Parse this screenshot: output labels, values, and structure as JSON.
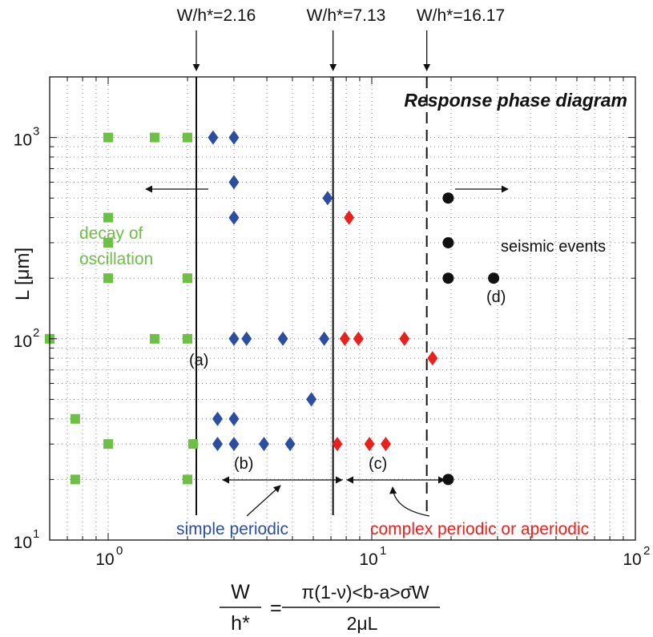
{
  "chart_data": {
    "type": "scatter",
    "title": "Response phase diagram",
    "xscale": "log",
    "yscale": "log",
    "xlim": [
      0.6,
      100
    ],
    "ylim": [
      10,
      2000
    ],
    "grid": true,
    "ylabel": "L [μm]",
    "xlabel": {
      "lhs_num": "W",
      "lhs_den": "h*",
      "equals": "=",
      "rhs_num": "π(1-ν)<b-a>σ̄W",
      "rhs_den": "2μL"
    },
    "x_ticks": [
      {
        "value": 1,
        "base": "10",
        "exp": "0"
      },
      {
        "value": 10,
        "base": "10",
        "exp": "1"
      },
      {
        "value": 100,
        "base": "10",
        "exp": "2"
      }
    ],
    "y_ticks": [
      {
        "value": 10,
        "base": "10",
        "exp": "1"
      },
      {
        "value": 100,
        "base": "10",
        "exp": "2"
      },
      {
        "value": 1000,
        "base": "10",
        "exp": "3"
      }
    ],
    "thresholds": [
      {
        "x": 2.16,
        "label": "W/h*=2.16",
        "style": "solid"
      },
      {
        "x": 7.13,
        "label": "W/h*=7.13",
        "style": "solid"
      },
      {
        "x": 16.17,
        "label": "W/h*=16.17",
        "style": "dashed"
      }
    ],
    "series": [
      {
        "marker": "square",
        "color": "#6dbf45",
        "points": [
          [
            1,
            1000
          ],
          [
            1.5,
            1000
          ],
          [
            2,
            1000
          ],
          [
            1,
            400
          ],
          [
            1,
            300
          ],
          [
            1,
            200
          ],
          [
            2,
            200
          ],
          [
            0.6,
            100
          ],
          [
            1.5,
            100
          ],
          [
            2,
            100
          ],
          [
            0.75,
            40
          ],
          [
            1,
            30
          ],
          [
            2.1,
            30
          ],
          [
            0.75,
            20
          ],
          [
            2,
            20
          ]
        ]
      },
      {
        "marker": "diamond",
        "color": "#2b4ea0",
        "points": [
          [
            2.5,
            1000
          ],
          [
            3,
            1000
          ],
          [
            3,
            600
          ],
          [
            6.8,
            500
          ],
          [
            3,
            400
          ],
          [
            3,
            100
          ],
          [
            3.35,
            100
          ],
          [
            4.6,
            100
          ],
          [
            6.6,
            100
          ],
          [
            5.9,
            50
          ],
          [
            2.6,
            40
          ],
          [
            3,
            40
          ],
          [
            2.6,
            30
          ],
          [
            3,
            30
          ],
          [
            3.9,
            30
          ],
          [
            4.9,
            30
          ]
        ]
      },
      {
        "marker": "diamond",
        "color": "#e8211d",
        "points": [
          [
            8.2,
            400
          ],
          [
            7.9,
            100
          ],
          [
            8.9,
            100
          ],
          [
            13.3,
            100
          ],
          [
            17,
            80
          ],
          [
            7.4,
            30
          ],
          [
            9.8,
            30
          ],
          [
            11.3,
            30
          ]
        ]
      },
      {
        "marker": "circle",
        "color": "#111111",
        "points": [
          [
            19.5,
            500
          ],
          [
            19.5,
            300
          ],
          [
            19.5,
            200
          ],
          [
            29,
            200
          ],
          [
            19.5,
            20
          ]
        ]
      }
    ],
    "region_labels": [
      {
        "text": "decay of",
        "color": "#6dbf45"
      },
      {
        "text": "oscillation",
        "color": "#6dbf45"
      },
      {
        "text": "seismic events",
        "color": "#111111"
      },
      {
        "text": "simple periodic",
        "color": "#2b4ea0"
      },
      {
        "text": "complex periodic or aperiodic",
        "color": "#e8211d"
      }
    ],
    "annotations": [
      "(a)",
      "(b)",
      "(c)",
      "(d)"
    ]
  }
}
